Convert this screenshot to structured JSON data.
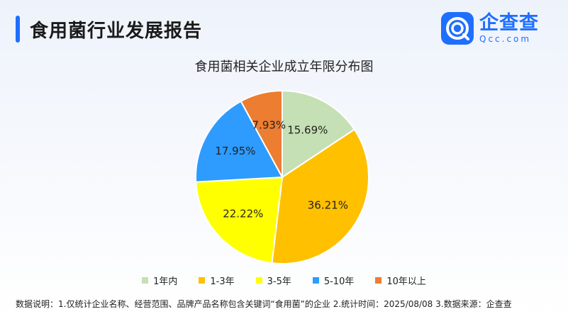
{
  "report_title": "食用菌行业发展报告",
  "logo": {
    "name": "企查查",
    "sub": "Qcc.com",
    "icon": "qcc-logo-icon"
  },
  "chart_data": {
    "type": "pie",
    "title": "食用菌相关企业成立年限分布图",
    "categories": [
      "1年内",
      "1-3年",
      "3-5年",
      "5-10年",
      "10年以上"
    ],
    "values": [
      15.69,
      36.21,
      22.22,
      17.95,
      7.93
    ],
    "labels": [
      "15.69%",
      "36.21%",
      "22.22%",
      "17.95%",
      "7.93%"
    ],
    "colors": [
      "#c5e0b4",
      "#ffc000",
      "#ffff00",
      "#2e9bff",
      "#ed7d31"
    ],
    "start_angle": "12 o'clock",
    "direction": "clockwise",
    "legend": "bottom"
  },
  "footnote": "数据说明：1.仅统计企业名称、经营范围、品牌产品名称包含关键词“食用菌”的企业   2.统计时间：2025/08/08   3.数据来源：企查查"
}
